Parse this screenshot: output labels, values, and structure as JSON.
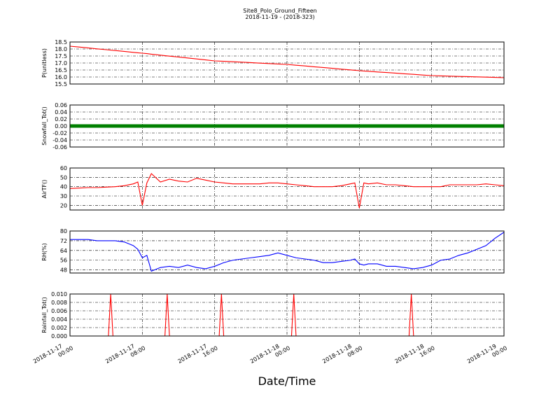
{
  "title": "Site8_Polo_Ground_Fifteen",
  "subtitle": "2018-11-19 - (2018-323)",
  "xlabel": "Date/Time",
  "xlim": [
    "2018-11-17 00:00",
    "2018-11-19 00:00"
  ],
  "xticks": [
    "2018-11-17 00:00",
    "2018-11-17 08:00",
    "2018-11-17 16:00",
    "2018-11-18 00:00",
    "2018-11-18 08:00",
    "2018-11-18 16:00",
    "2018-11-19 00:00"
  ],
  "x": [
    "2018-11-17 00:00",
    "2018-11-17 01:00",
    "2018-11-17 02:00",
    "2018-11-17 03:00",
    "2018-11-17 04:00",
    "2018-11-17 05:00",
    "2018-11-17 06:00",
    "2018-11-17 07:00",
    "2018-11-17 07:30",
    "2018-11-17 08:00",
    "2018-11-17 08:30",
    "2018-11-17 09:00",
    "2018-11-17 10:00",
    "2018-11-17 11:00",
    "2018-11-17 12:00",
    "2018-11-17 13:00",
    "2018-11-17 14:00",
    "2018-11-17 15:00",
    "2018-11-17 16:00",
    "2018-11-17 17:00",
    "2018-11-17 18:00",
    "2018-11-17 19:00",
    "2018-11-17 20:00",
    "2018-11-17 21:00",
    "2018-11-17 22:00",
    "2018-11-17 23:00",
    "2018-11-18 00:00",
    "2018-11-18 01:00",
    "2018-11-18 02:00",
    "2018-11-18 03:00",
    "2018-11-18 04:00",
    "2018-11-18 05:00",
    "2018-11-18 06:00",
    "2018-11-18 07:00",
    "2018-11-18 07:30",
    "2018-11-18 08:00",
    "2018-11-18 08:30",
    "2018-11-18 09:00",
    "2018-11-18 10:00",
    "2018-11-18 11:00",
    "2018-11-18 12:00",
    "2018-11-18 13:00",
    "2018-11-18 14:00",
    "2018-11-18 15:00",
    "2018-11-18 16:00",
    "2018-11-18 17:00",
    "2018-11-18 18:00",
    "2018-11-18 19:00",
    "2018-11-18 20:00",
    "2018-11-18 21:00",
    "2018-11-18 22:00",
    "2018-11-18 23:00",
    "2018-11-19 00:00"
  ],
  "chart_data": [
    {
      "type": "line",
      "ylabel": "P(unitless)",
      "color": "#ff0000",
      "grid": true,
      "ylim": [
        15.5,
        18.5
      ],
      "yticks": [
        15.5,
        {
          "value": 16,
          "label": "16.0"
        },
        16.5,
        {
          "value": 17,
          "label": "17.0"
        },
        17.5,
        {
          "value": 18,
          "label": "18.0"
        },
        18.5
      ],
      "values": [
        18.2,
        18.14,
        18.08,
        18.01,
        17.95,
        17.89,
        17.83,
        17.76,
        17.73,
        17.7,
        17.67,
        17.63,
        17.56,
        17.49,
        17.43,
        17.36,
        17.29,
        17.22,
        17.15,
        17.12,
        17.09,
        17.06,
        17.03,
        16.99,
        16.96,
        16.93,
        16.9,
        16.84,
        16.79,
        16.73,
        16.68,
        16.62,
        16.56,
        16.51,
        16.48,
        16.45,
        16.43,
        16.41,
        16.36,
        16.32,
        16.28,
        16.23,
        16.19,
        16.14,
        16.1,
        16.08,
        16.06,
        16.04,
        16.03,
        16.01,
        15.99,
        15.97,
        15.95
      ]
    },
    {
      "type": "line",
      "ylabel": "Snowfall_Tot()",
      "color": "#008000",
      "grid": true,
      "marker": true,
      "ylim": [
        -0.06,
        0.06
      ],
      "yticks": [
        -0.06,
        -0.04,
        -0.02,
        {
          "value": 0,
          "label": "0.00"
        },
        0.02,
        0.04,
        0.06
      ],
      "values": [
        0,
        0,
        0,
        0,
        0,
        0,
        0,
        0,
        0,
        0,
        0,
        0,
        0,
        0,
        0,
        0,
        0,
        0,
        0,
        0,
        0,
        0,
        0,
        0,
        0,
        0,
        0,
        0,
        0,
        0,
        0,
        0,
        0,
        0,
        0,
        0,
        0,
        0,
        0,
        0,
        0,
        0,
        0,
        0,
        0,
        0,
        0,
        0,
        0,
        0,
        0,
        0,
        0
      ]
    },
    {
      "type": "line",
      "ylabel": "AirTF()",
      "color": "#ff0000",
      "grid": true,
      "ylim": [
        15,
        60
      ],
      "yticks": [
        20,
        30,
        40,
        50,
        60
      ],
      "values": [
        38,
        38.5,
        39,
        39,
        39.5,
        40,
        41,
        43,
        45,
        20,
        44,
        54,
        45,
        48,
        46,
        45,
        49,
        47,
        45,
        44,
        43,
        43,
        43,
        43,
        44,
        44,
        43,
        42,
        41,
        40,
        40,
        40,
        41,
        43,
        44,
        17,
        44,
        43,
        44,
        42,
        42,
        41,
        40,
        40,
        40,
        40,
        42,
        42,
        42,
        42,
        43,
        42,
        41
      ]
    },
    {
      "type": "line",
      "ylabel": "RH(%)",
      "color": "#0000ff",
      "grid": true,
      "ylim": [
        45.5,
        80
      ],
      "yticks": [
        48,
        56,
        64,
        72,
        80
      ],
      "values": [
        73,
        73,
        73,
        72,
        72,
        72,
        71,
        68,
        65,
        58,
        60,
        47,
        50,
        51,
        50,
        52,
        50,
        49,
        51,
        54,
        56,
        57,
        58,
        59,
        60,
        62,
        60,
        58,
        57,
        56,
        54,
        54,
        55,
        56,
        57,
        53,
        52,
        53,
        53,
        51,
        51,
        50,
        49,
        50,
        52,
        56,
        57,
        60,
        62,
        65,
        68,
        74,
        79
      ]
    },
    {
      "type": "line",
      "ylabel": "Rainfall_Tot()",
      "color": "#ff0000",
      "grid": true,
      "ylim": [
        0,
        0.01
      ],
      "yticks": [
        {
          "value": 0,
          "label": "0.000"
        },
        0.002,
        0.004,
        0.006,
        0.008,
        {
          "value": 0.01,
          "label": "0.010"
        }
      ],
      "x": [
        "2018-11-17 00:00",
        "2018-11-17 04:15",
        "2018-11-17 04:30",
        "2018-11-17 04:45",
        "2018-11-17 10:30",
        "2018-11-17 10:45",
        "2018-11-17 11:00",
        "2018-11-17 16:30",
        "2018-11-17 16:45",
        "2018-11-17 17:00",
        "2018-11-18 00:30",
        "2018-11-18 00:45",
        "2018-11-18 01:00",
        "2018-11-18 13:30",
        "2018-11-18 13:45",
        "2018-11-18 14:00",
        "2018-11-19 00:00"
      ],
      "values": [
        0,
        0,
        0.01,
        0,
        0,
        0.01,
        0,
        0,
        0.01,
        0,
        0,
        0.01,
        0,
        0,
        0.01,
        0,
        0
      ]
    }
  ]
}
